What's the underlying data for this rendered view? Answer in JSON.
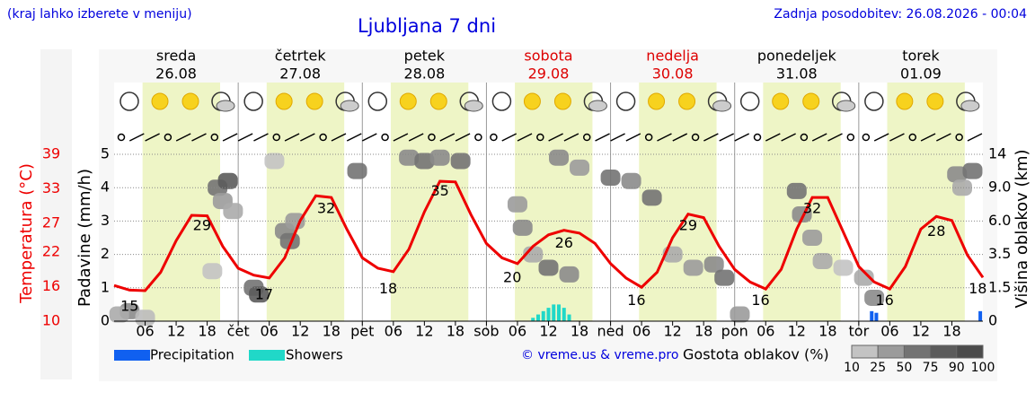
{
  "header": {
    "note": "(kraj lahko izberete v meniju)",
    "title": "Ljubljana 7 dni",
    "updated": "Zadnja posodobitev: 26.08.2026 - 00:04",
    "copyright": "© vreme.us & vreme.pro"
  },
  "days": [
    {
      "name": "sreda",
      "date": "26.08",
      "color": "#000000"
    },
    {
      "name": "četrtek",
      "date": "27.08",
      "color": "#000000"
    },
    {
      "name": "petek",
      "date": "28.08",
      "color": "#000000"
    },
    {
      "name": "sobota",
      "date": "29.08",
      "color": "#dd0000"
    },
    {
      "name": "nedelja",
      "date": "30.08",
      "color": "#dd0000"
    },
    {
      "name": "ponedeljek",
      "date": "31.08",
      "color": "#000000"
    },
    {
      "name": "torek",
      "date": "01.09",
      "color": "#000000"
    }
  ],
  "chart_data": {
    "type": "line",
    "ylabel": "Padavine (mm/h)",
    "y2label": "Višina oblakov (km)",
    "tlabel": "Temperatura (°C)",
    "xlim": [
      0,
      168
    ],
    "ylim": [
      0,
      5
    ],
    "yticks": [
      0,
      1,
      2,
      3,
      4,
      5
    ],
    "tlim": [
      10,
      39
    ],
    "tticks": [
      10,
      16,
      22,
      27,
      33,
      39
    ],
    "y2ticks": [
      0,
      1.5,
      3.5,
      {
        "value": 6,
        "label": "6.0"
      },
      {
        "value": 9,
        "label": "9.0"
      },
      14
    ],
    "xticks": [
      {
        "value": 6,
        "label": "06"
      },
      {
        "value": 12,
        "label": "12"
      },
      {
        "value": 18,
        "label": "18"
      },
      {
        "value": 24,
        "label": "čet"
      },
      {
        "value": 30,
        "label": "06"
      },
      {
        "value": 36,
        "label": "12"
      },
      {
        "value": 42,
        "label": "18"
      },
      {
        "value": 48,
        "label": "pet"
      },
      {
        "value": 54,
        "label": "06"
      },
      {
        "value": 60,
        "label": "12"
      },
      {
        "value": 66,
        "label": "18"
      },
      {
        "value": 72,
        "label": "sob"
      },
      {
        "value": 78,
        "label": "06"
      },
      {
        "value": 84,
        "label": "12"
      },
      {
        "value": 90,
        "label": "18"
      },
      {
        "value": 96,
        "label": "ned"
      },
      {
        "value": 102,
        "label": "06"
      },
      {
        "value": 108,
        "label": "12"
      },
      {
        "value": 114,
        "label": "18"
      },
      {
        "value": 120,
        "label": "pon"
      },
      {
        "value": 126,
        "label": "06"
      },
      {
        "value": 132,
        "label": "12"
      },
      {
        "value": 138,
        "label": "18"
      },
      {
        "value": 144,
        "label": "tor"
      },
      {
        "value": 150,
        "label": "06"
      },
      {
        "value": 156,
        "label": "12"
      },
      {
        "value": 162,
        "label": "18"
      }
    ],
    "grid": true,
    "temperature": {
      "color": "#ee0000",
      "x": [
        0,
        3,
        6,
        9,
        12,
        15,
        18,
        21,
        24,
        27,
        30,
        33,
        36,
        39,
        42,
        45,
        48,
        51,
        54,
        57,
        60,
        63,
        66,
        69,
        72,
        75,
        78,
        81,
        84,
        87,
        90,
        93,
        96,
        99,
        102,
        105,
        108,
        111,
        114,
        117,
        120,
        123,
        126,
        129,
        132,
        135,
        138,
        141,
        144,
        147,
        150,
        153,
        156,
        159,
        162,
        165,
        168
      ],
      "values": [
        16.2,
        15.4,
        15.3,
        18.5,
        24,
        28.4,
        28.3,
        23,
        19.2,
        18,
        17.5,
        21,
        27.5,
        31.8,
        31.5,
        26,
        21,
        19.2,
        18.6,
        22.5,
        29,
        34.3,
        34.2,
        28.5,
        23.5,
        21,
        20,
        23,
        25,
        25.8,
        25.3,
        23.5,
        20,
        17.5,
        15.9,
        18.5,
        24.5,
        28.6,
        28,
        23,
        19,
        16.8,
        15.6,
        19,
        26,
        31.5,
        31.5,
        25.5,
        19.5,
        16.8,
        15.6,
        19.5,
        26,
        28.2,
        27.5,
        21.5,
        17.6
      ]
    },
    "temp_labels": {
      "x": [
        3,
        17,
        29,
        41,
        53,
        63,
        77,
        87,
        101,
        111,
        125,
        135,
        149,
        159,
        167
      ],
      "values": [
        15,
        29,
        17,
        32,
        18,
        35,
        20,
        26,
        16,
        29,
        16,
        32,
        16,
        28,
        18
      ]
    },
    "precipitation": {
      "name": "Precipitation",
      "color": "#1060f0",
      "x": [
        146.5,
        147.4,
        167.5
      ],
      "values": [
        0.3,
        0.25,
        0.3
      ]
    },
    "showers": {
      "name": "Showers",
      "color": "#20d8c8",
      "x": [
        81,
        82,
        83,
        84,
        85,
        86,
        87,
        88
      ],
      "values": [
        0.1,
        0.2,
        0.3,
        0.4,
        0.5,
        0.5,
        0.4,
        0.2
      ]
    },
    "clouds": {
      "label": "Gostota oblakov (%)",
      "x": [
        20,
        22,
        21,
        23,
        19,
        3,
        1,
        6,
        27,
        28,
        33,
        34,
        35,
        31,
        47,
        57,
        60,
        63,
        67,
        78,
        79,
        81,
        84,
        88,
        86,
        90,
        96,
        100,
        104,
        108,
        112,
        116,
        118,
        121,
        132,
        133,
        135,
        137,
        141,
        145,
        147,
        163,
        166,
        164
      ],
      "y": [
        4.0,
        4.2,
        3.6,
        3.3,
        1.5,
        0.3,
        0.2,
        0.1,
        1.0,
        0.8,
        2.7,
        2.4,
        3.0,
        4.8,
        4.5,
        4.9,
        4.8,
        4.9,
        4.8,
        3.5,
        2.8,
        2.0,
        1.6,
        1.4,
        4.9,
        4.6,
        4.3,
        4.2,
        3.7,
        2.0,
        1.6,
        1.7,
        1.3,
        0.2,
        3.9,
        3.2,
        2.5,
        1.8,
        1.6,
        1.3,
        0.7,
        4.4,
        4.5,
        4.0
      ],
      "density": [
        75,
        90,
        50,
        40,
        25,
        60,
        40,
        30,
        75,
        90,
        60,
        75,
        50,
        25,
        75,
        60,
        75,
        60,
        75,
        50,
        60,
        40,
        75,
        60,
        60,
        50,
        75,
        60,
        75,
        40,
        50,
        60,
        75,
        50,
        75,
        60,
        50,
        40,
        25,
        40,
        60,
        60,
        75,
        40
      ],
      "scale": [
        10,
        25,
        50,
        75,
        90,
        100
      ]
    }
  }
}
